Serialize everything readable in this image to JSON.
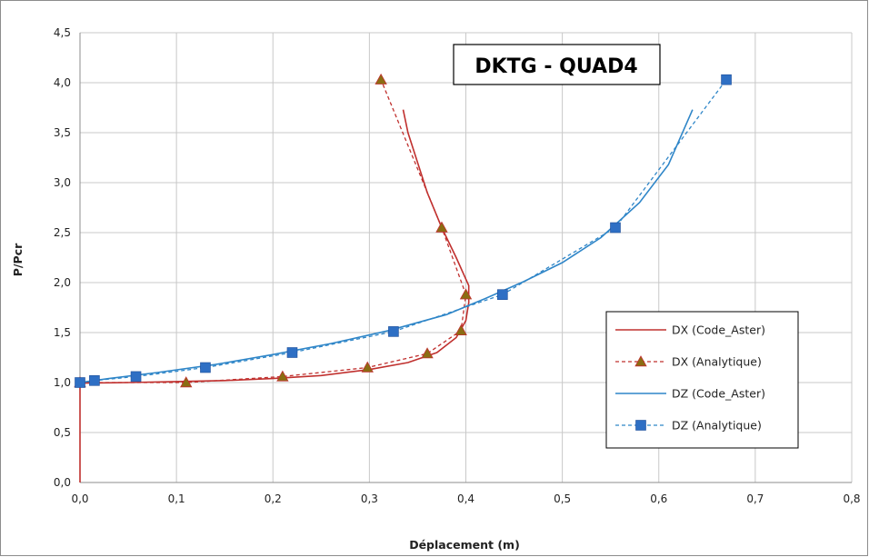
{
  "chart_data": {
    "type": "line",
    "title": "DKTG - QUAD4",
    "xlabel": "Déplacement (m)",
    "ylabel": "P/Pcr",
    "xlim": [
      0,
      0.8
    ],
    "ylim": [
      0,
      4.5
    ],
    "x_ticks": [
      "0,0",
      "0,1",
      "0,2",
      "0,3",
      "0,4",
      "0,5",
      "0,6",
      "0,7",
      "0,8"
    ],
    "y_ticks": [
      "0,0",
      "0,5",
      "1,0",
      "1,5",
      "2,0",
      "2,5",
      "3,0",
      "3,5",
      "4,0",
      "4,5"
    ],
    "grid": true,
    "legend_position": "right",
    "colors": {
      "red": "#c0302e",
      "blue": "#2f86c8",
      "blue_marker": "#2e6fc4",
      "marker_fill": "#8a6d12"
    },
    "series": [
      {
        "name": "DX (Code_Aster)",
        "style": "solid",
        "color": "#c0302e",
        "marker": "none",
        "points": [
          [
            0,
            0
          ],
          [
            0,
            0.98
          ],
          [
            0.005,
            0.995
          ],
          [
            0.05,
            1.0
          ],
          [
            0.1,
            1.01
          ],
          [
            0.15,
            1.02
          ],
          [
            0.2,
            1.04
          ],
          [
            0.25,
            1.07
          ],
          [
            0.3,
            1.13
          ],
          [
            0.34,
            1.2
          ],
          [
            0.37,
            1.3
          ],
          [
            0.39,
            1.45
          ],
          [
            0.4,
            1.62
          ],
          [
            0.403,
            1.8
          ],
          [
            0.403,
            1.97
          ],
          [
            0.39,
            2.25
          ],
          [
            0.375,
            2.55
          ],
          [
            0.36,
            2.9
          ],
          [
            0.35,
            3.2
          ],
          [
            0.34,
            3.5
          ],
          [
            0.335,
            3.73
          ]
        ]
      },
      {
        "name": "DX (Analytique)",
        "style": "dashed",
        "color": "#c0302e",
        "marker": "triangle",
        "points": [
          [
            0,
            1.0
          ],
          [
            0.11,
            1.0
          ],
          [
            0.21,
            1.06
          ],
          [
            0.298,
            1.15
          ],
          [
            0.36,
            1.29
          ],
          [
            0.395,
            1.52
          ],
          [
            0.4,
            1.88
          ],
          [
            0.375,
            2.55
          ],
          [
            0.312,
            4.03
          ]
        ]
      },
      {
        "name": "DZ (Code_Aster)",
        "style": "solid",
        "color": "#2f86c8",
        "marker": "none",
        "points": [
          [
            0,
            1.0
          ],
          [
            0.03,
            1.04
          ],
          [
            0.08,
            1.1
          ],
          [
            0.14,
            1.18
          ],
          [
            0.2,
            1.28
          ],
          [
            0.26,
            1.39
          ],
          [
            0.32,
            1.52
          ],
          [
            0.38,
            1.68
          ],
          [
            0.42,
            1.84
          ],
          [
            0.46,
            2.01
          ],
          [
            0.5,
            2.2
          ],
          [
            0.54,
            2.45
          ],
          [
            0.58,
            2.8
          ],
          [
            0.61,
            3.18
          ],
          [
            0.635,
            3.73
          ]
        ]
      },
      {
        "name": "DZ (Analytique)",
        "style": "dashed",
        "color": "#2f86c8",
        "marker": "square",
        "points": [
          [
            0,
            1.0
          ],
          [
            0.015,
            1.02
          ],
          [
            0.058,
            1.06
          ],
          [
            0.13,
            1.15
          ],
          [
            0.22,
            1.3
          ],
          [
            0.325,
            1.51
          ],
          [
            0.438,
            1.88
          ],
          [
            0.555,
            2.55
          ],
          [
            0.67,
            4.03
          ]
        ]
      }
    ]
  }
}
